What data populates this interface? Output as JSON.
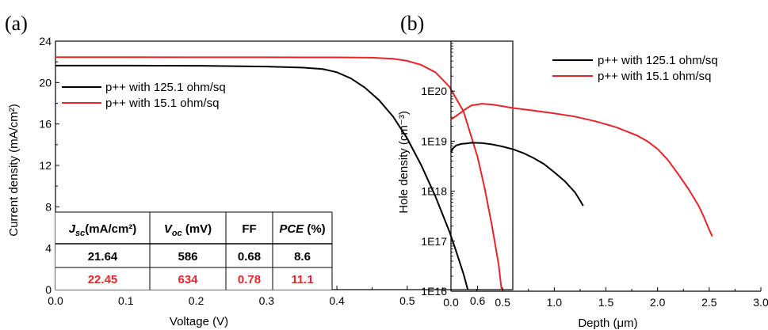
{
  "chart_data": [
    {
      "panel_label": "(a)",
      "type": "line",
      "xlabel": "Voltage (V)",
      "ylabel": "Current density (mA/cm²)",
      "xlim": [
        0.0,
        0.65
      ],
      "ylim": [
        0,
        24
      ],
      "x_ticks": [
        "0.0",
        "0.1",
        "0.2",
        "0.3",
        "0.4",
        "0.5",
        "0.6"
      ],
      "y_ticks": [
        "0",
        "4",
        "8",
        "12",
        "16",
        "20",
        "24"
      ],
      "legend_position": "top-right",
      "series": [
        {
          "name": "p++ with 125.1 ohm/sq",
          "color": "#000000",
          "x": [
            0.0,
            0.1,
            0.2,
            0.3,
            0.35,
            0.38,
            0.4,
            0.42,
            0.44,
            0.46,
            0.48,
            0.5,
            0.52,
            0.54,
            0.56,
            0.57,
            0.58,
            0.586
          ],
          "y": [
            21.64,
            21.64,
            21.62,
            21.55,
            21.45,
            21.3,
            21.0,
            20.4,
            19.5,
            18.3,
            16.7,
            14.6,
            12.0,
            9.0,
            5.6,
            3.6,
            1.5,
            0.0
          ]
        },
        {
          "name": "p++ with 15.1 ohm/sq",
          "color": "#e8232a",
          "x": [
            0.0,
            0.1,
            0.2,
            0.3,
            0.4,
            0.45,
            0.48,
            0.5,
            0.52,
            0.54,
            0.56,
            0.58,
            0.6,
            0.61,
            0.62,
            0.63,
            0.634
          ],
          "y": [
            22.45,
            22.45,
            22.44,
            22.44,
            22.43,
            22.4,
            22.3,
            22.1,
            21.7,
            21.0,
            19.6,
            17.2,
            12.8,
            9.8,
            6.3,
            2.4,
            0.0
          ]
        }
      ],
      "table": {
        "headers": [
          {
            "main": "J",
            "sub": "sc",
            "rest": "(mA/cm²)"
          },
          {
            "main": "V",
            "sub": "oc",
            "rest": " (mV)"
          },
          {
            "main": "FF",
            "sub": "",
            "rest": ""
          },
          {
            "main": "PCE",
            "sub": "",
            "rest": " (%)"
          }
        ],
        "rows": [
          {
            "color": "#000000",
            "cells": [
              "21.64",
              "586",
              "0.68",
              "8.6"
            ]
          },
          {
            "color": "#e8232a",
            "cells": [
              "22.45",
              "634",
              "0.78",
              "11.1"
            ]
          }
        ]
      }
    },
    {
      "panel_label": "(b)",
      "type": "line",
      "xlabel": "Depth (μm)",
      "ylabel": "Hole density (cm⁻³)",
      "xlim": [
        0.0,
        3.0
      ],
      "ylim": [
        1e+16,
        1e+21
      ],
      "y_scale": "log",
      "x_ticks": [
        "0.0",
        "0.5",
        "1.0",
        "1.5",
        "2.0",
        "2.5",
        "3.0"
      ],
      "y_ticks": [
        "1E16",
        "1E17",
        "1E18",
        "1E19",
        "1E20"
      ],
      "legend_position": "top-right",
      "series": [
        {
          "name": "p++ with 125.1 ohm/sq",
          "color": "#000000",
          "x": [
            0.0,
            0.02,
            0.05,
            0.1,
            0.15,
            0.2,
            0.3,
            0.4,
            0.5,
            0.6,
            0.7,
            0.8,
            0.9,
            1.0,
            1.1,
            1.2,
            1.25,
            1.28
          ],
          "y": [
            6e+18,
            7.2e+18,
            8.2e+18,
            8.8e+18,
            9e+18,
            9.3e+18,
            9.2e+18,
            8.6e+18,
            7.8e+18,
            6.9e+18,
            5.8e+18,
            4.6e+18,
            3.5e+18,
            2.4e+18,
            1.6e+18,
            9.5e+17,
            6.5e+17,
            5.1e+17
          ]
        },
        {
          "name": "p++ with 15.1 ohm/sq",
          "color": "#e8232a",
          "x": [
            0.0,
            0.05,
            0.1,
            0.15,
            0.2,
            0.3,
            0.4,
            0.5,
            0.6,
            0.8,
            1.0,
            1.2,
            1.4,
            1.6,
            1.8,
            1.9,
            2.0,
            2.1,
            2.2,
            2.3,
            2.4,
            2.45,
            2.5,
            2.53
          ],
          "y": [
            2.7e+19,
            3.2e+19,
            3.8e+19,
            4.5e+19,
            5.2e+19,
            5.6e+19,
            5.4e+19,
            5e+19,
            4.6e+19,
            4.1e+19,
            3.6e+19,
            3.1e+19,
            2.5e+19,
            1.9e+19,
            1.3e+19,
            1e+19,
            7e+18,
            4.2e+18,
            2.2e+18,
            1.1e+18,
            5e+17,
            3e+17,
            1.7e+17,
            1.25e+17
          ]
        }
      ]
    }
  ]
}
